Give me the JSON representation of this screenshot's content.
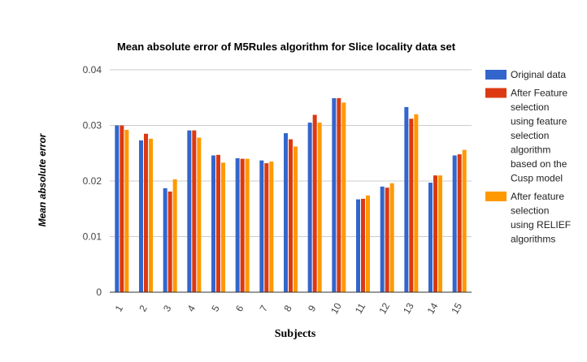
{
  "chart_data": {
    "type": "bar",
    "title": "Mean absolute error of M5Rules algorithm for Slice locality data set",
    "xlabel": "Subjects",
    "ylabel": "Mean absolute error",
    "ylim": [
      0,
      0.04
    ],
    "yticks": [
      "0",
      "0.01",
      "0.02",
      "0.03",
      "0.04"
    ],
    "ytick_values": [
      0,
      0.01,
      0.02,
      0.03,
      0.04
    ],
    "grid": true,
    "legend_position": "right",
    "categories": [
      "1",
      "2",
      "3",
      "4",
      "5",
      "6",
      "7",
      "8",
      "9",
      "10",
      "11",
      "12",
      "13",
      "14",
      "15"
    ],
    "series": [
      {
        "name": "Original data",
        "legend_lines": [
          "Original data"
        ],
        "color": "#3366cc",
        "values": [
          0.03,
          0.0273,
          0.0187,
          0.0291,
          0.0246,
          0.0241,
          0.0237,
          0.0286,
          0.0305,
          0.0349,
          0.0167,
          0.019,
          0.0333,
          0.0197,
          0.0246
        ]
      },
      {
        "name": "After Feature selection using feature selection algorithm based on the Cusp model",
        "legend_lines": [
          "After Feature",
          "selection",
          "using feature",
          "selection",
          "algorithm",
          "based on the",
          "Cusp model"
        ],
        "color": "#dc3912",
        "values": [
          0.03,
          0.0285,
          0.0181,
          0.0291,
          0.0247,
          0.024,
          0.0232,
          0.0275,
          0.0319,
          0.0349,
          0.0168,
          0.0188,
          0.0312,
          0.021,
          0.0248
        ]
      },
      {
        "name": "After feature selection using RELIEF algorithms",
        "legend_lines": [
          "After feature",
          "selection",
          "using RELIEF",
          "algorithms"
        ],
        "color": "#ff9900",
        "values": [
          0.0292,
          0.0276,
          0.0203,
          0.0278,
          0.0233,
          0.024,
          0.0235,
          0.0262,
          0.0305,
          0.0341,
          0.0174,
          0.0196,
          0.032,
          0.021,
          0.0256
        ]
      }
    ]
  }
}
